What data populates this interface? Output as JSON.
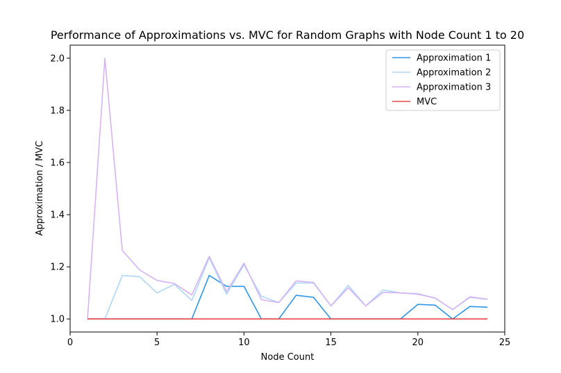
{
  "chart_data": {
    "type": "line",
    "title": "Performance of Approximations vs. MVC for Random Graphs with Node Count 1 to 20",
    "xlabel": "Node Count",
    "ylabel": "Approximation / MVC",
    "xlim": [
      0,
      25
    ],
    "ylim": [
      0.95,
      2.05
    ],
    "xticks": [
      0,
      5,
      10,
      15,
      20,
      25
    ],
    "xtick_labels": [
      "0",
      "5",
      "10",
      "15",
      "20",
      "25"
    ],
    "yticks": [
      1.0,
      1.2,
      1.4,
      1.6,
      1.8,
      2.0
    ],
    "ytick_labels": [
      "1.0",
      "1.2",
      "1.4",
      "1.6",
      "1.8",
      "2.0"
    ],
    "grid": false,
    "legend": "top-right",
    "x": [
      1,
      2,
      3,
      4,
      5,
      6,
      7,
      8,
      9,
      10,
      11,
      12,
      13,
      14,
      15,
      16,
      17,
      18,
      19,
      20,
      21,
      22,
      23,
      24
    ],
    "series": [
      {
        "name": "Approximation 1",
        "color": "#2e96e8",
        "values": [
          1.0,
          1.0,
          1.0,
          1.0,
          1.0,
          1.0,
          1.0,
          1.167,
          1.125,
          1.125,
          1.0,
          1.0,
          1.091,
          1.083,
          1.0,
          1.0,
          1.0,
          1.0,
          1.0,
          1.056,
          1.053,
          1.0,
          1.048,
          1.045
        ]
      },
      {
        "name": "Approximation 2",
        "color": "#aed6f7",
        "values": [
          1.0,
          1.0,
          1.167,
          1.162,
          1.1,
          1.133,
          1.071,
          1.235,
          1.095,
          1.208,
          1.087,
          1.063,
          1.138,
          1.138,
          1.05,
          1.129,
          1.05,
          1.111,
          1.1,
          1.097,
          1.08,
          1.036,
          1.083,
          1.075
        ]
      },
      {
        "name": "Approximation 3",
        "color": "#d6b3f5",
        "values": [
          1.0,
          2.0,
          1.263,
          1.188,
          1.148,
          1.136,
          1.092,
          1.24,
          1.105,
          1.214,
          1.074,
          1.063,
          1.146,
          1.14,
          1.05,
          1.12,
          1.05,
          1.102,
          1.1,
          1.095,
          1.08,
          1.036,
          1.085,
          1.076
        ]
      },
      {
        "name": "MVC",
        "color": "#e8474c",
        "values": [
          1.0,
          1.0,
          1.0,
          1.0,
          1.0,
          1.0,
          1.0,
          1.0,
          1.0,
          1.0,
          1.0,
          1.0,
          1.0,
          1.0,
          1.0,
          1.0,
          1.0,
          1.0,
          1.0,
          1.0,
          1.0,
          1.0,
          1.0,
          1.0
        ]
      }
    ]
  }
}
